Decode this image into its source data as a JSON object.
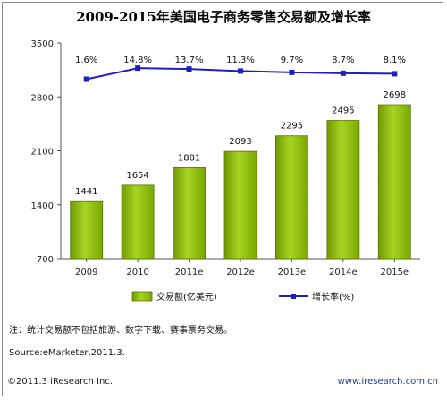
{
  "chart_data": {
    "type": "bar",
    "title": "2009-2015年美国电子商务零售交易额及增长率",
    "categories": [
      "2009",
      "2010",
      "2011e",
      "2012e",
      "2013e",
      "2014e",
      "2015e"
    ],
    "series": [
      {
        "name": "交易额(亿美元)",
        "type": "bar",
        "values": [
          1441,
          1654,
          1881,
          2093,
          2295,
          2495,
          2698
        ],
        "color": "#99cc00"
      },
      {
        "name": "增长率(%)",
        "type": "line",
        "values": [
          1.6,
          14.8,
          13.7,
          11.3,
          9.7,
          8.7,
          8.1
        ],
        "labels": [
          "1.6%",
          "14.8%",
          "13.7%",
          "11.3%",
          "9.7%",
          "8.7%",
          "8.1%"
        ],
        "color": "#1f1fbf"
      }
    ],
    "y_ticks": [
      "700",
      "1400",
      "2100",
      "2800",
      "3500"
    ],
    "ylim": [
      700,
      3500
    ],
    "grid": false,
    "legend_position": "bottom"
  },
  "notes": {
    "note": "注：统计交易额不包括旅游、数字下载、赛事票务交易。",
    "source": "Source:eMarketer,2011.3."
  },
  "footer": {
    "copyright": "©2011.3 iResearch Inc.",
    "website": "www.iresearch.com.cn"
  }
}
